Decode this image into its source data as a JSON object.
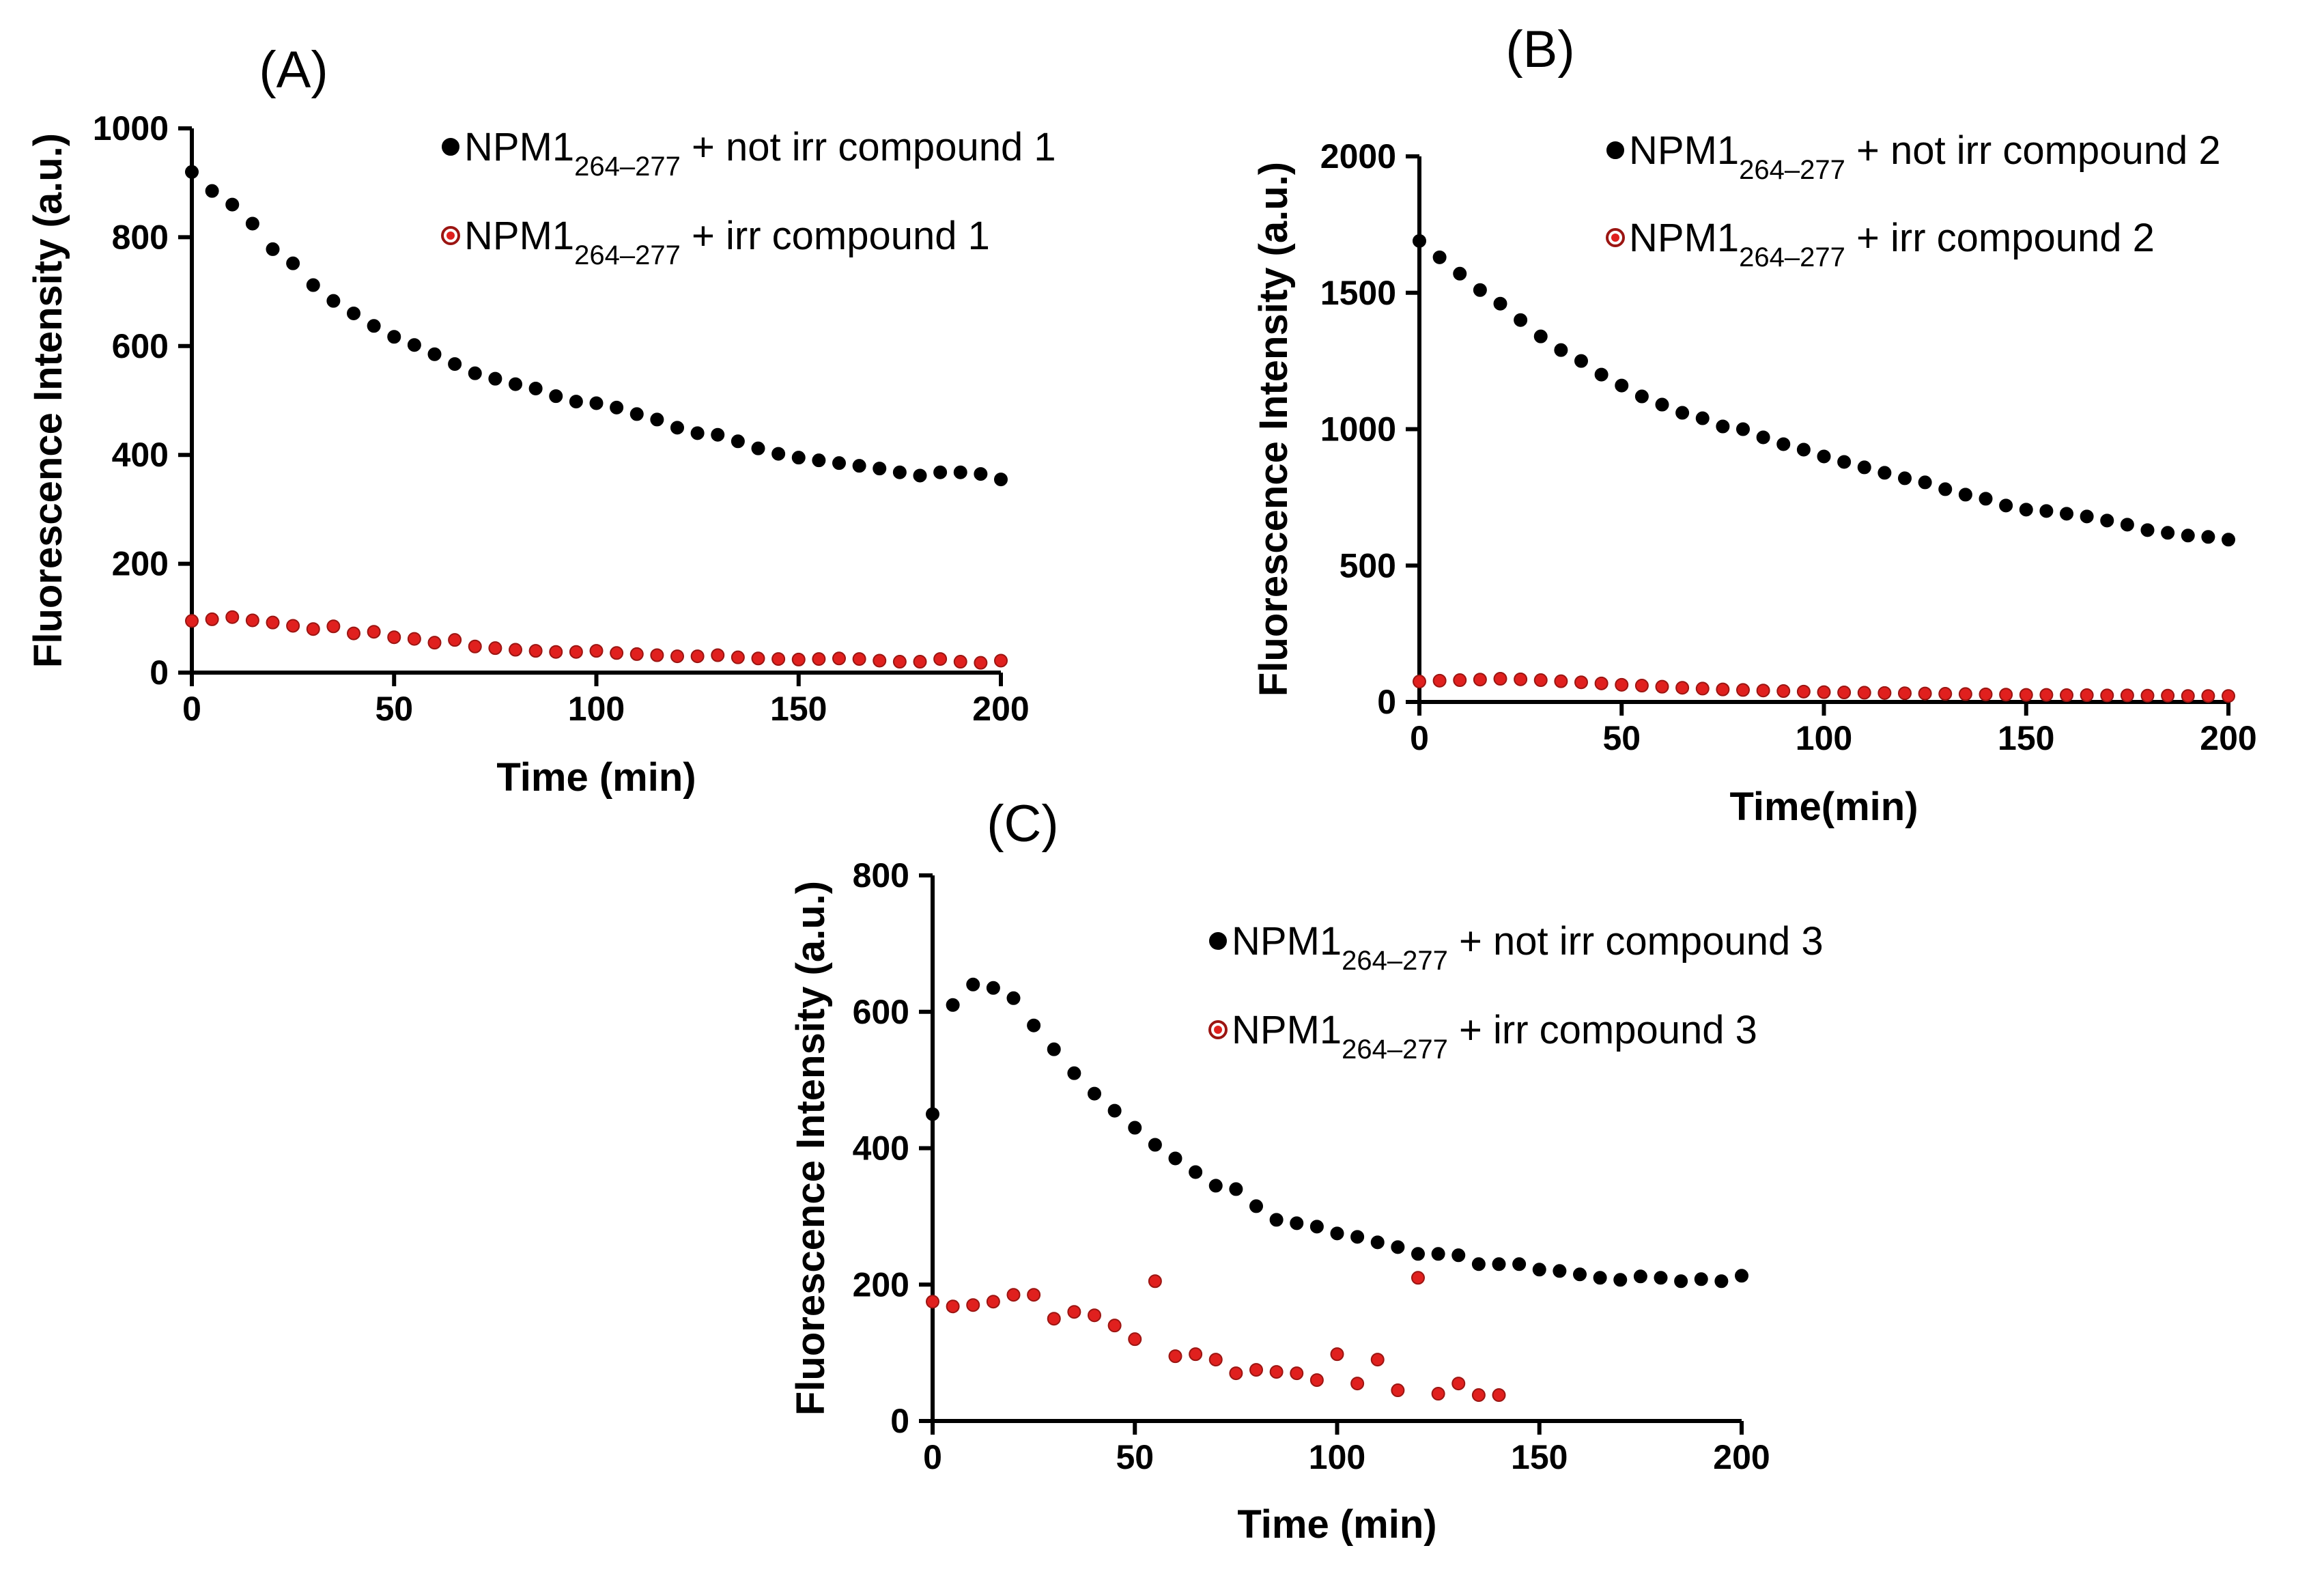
{
  "colors": {
    "not_irradiated": "#000000",
    "irradiated": "#e0201e",
    "irradiated_marker_edge": "#9b1512"
  },
  "chart_data": [
    {
      "type": "scatter",
      "panel": "(A)",
      "xlabel": "Time (min)",
      "ylabel": "Fluorescence Intensity (a.u.)",
      "xlim": [
        0,
        200
      ],
      "ylim": [
        0,
        1000
      ],
      "xticks": [
        0,
        50,
        100,
        150,
        200
      ],
      "yticks": [
        0,
        200,
        400,
        600,
        800,
        1000
      ],
      "legend_position": "top-right",
      "series": [
        {
          "key": "not_irr",
          "legend": {
            "prefix": "NPM1",
            "sub": "264–277",
            "suffix": " + not irr compound 1"
          },
          "x": [
            0,
            5,
            10,
            15,
            20,
            25,
            30,
            35,
            40,
            45,
            50,
            55,
            60,
            65,
            70,
            75,
            80,
            85,
            90,
            95,
            100,
            105,
            110,
            115,
            120,
            125,
            130,
            135,
            140,
            145,
            150,
            155,
            160,
            165,
            170,
            175,
            180,
            185,
            190,
            195,
            200
          ],
          "y": [
            920,
            885,
            860,
            825,
            778,
            752,
            712,
            683,
            660,
            637,
            617,
            602,
            585,
            567,
            550,
            540,
            530,
            522,
            508,
            498,
            495,
            487,
            475,
            465,
            450,
            440,
            437,
            425,
            412,
            402,
            395,
            390,
            385,
            380,
            375,
            368,
            362,
            368,
            368,
            365,
            355
          ]
        },
        {
          "key": "irr",
          "legend": {
            "prefix": "NPM1",
            "sub": "264–277",
            "suffix": " + irr compound 1"
          },
          "x": [
            0,
            5,
            10,
            15,
            20,
            25,
            30,
            35,
            40,
            45,
            50,
            55,
            60,
            65,
            70,
            75,
            80,
            85,
            90,
            95,
            100,
            105,
            110,
            115,
            120,
            125,
            130,
            135,
            140,
            145,
            150,
            155,
            160,
            165,
            170,
            175,
            180,
            185,
            190,
            195,
            200
          ],
          "y": [
            95,
            98,
            102,
            96,
            92,
            86,
            80,
            85,
            72,
            75,
            65,
            62,
            55,
            60,
            48,
            45,
            42,
            40,
            38,
            38,
            40,
            36,
            34,
            32,
            30,
            30,
            32,
            28,
            26,
            25,
            24,
            25,
            26,
            25,
            22,
            20,
            20,
            25,
            20,
            18,
            22
          ]
        }
      ]
    },
    {
      "type": "scatter",
      "panel": "(B)",
      "xlabel": "Time(min)",
      "ylabel": "Fluorescence Intensity (a.u.)",
      "xlim": [
        0,
        200
      ],
      "ylim": [
        0,
        2000
      ],
      "xticks": [
        0,
        50,
        100,
        150,
        200
      ],
      "yticks": [
        0,
        500,
        1000,
        1500,
        2000
      ],
      "legend_position": "top-right",
      "series": [
        {
          "key": "not_irr",
          "legend": {
            "prefix": "NPM1",
            "sub": "264–277",
            "suffix": " + not irr compound 2"
          },
          "x": [
            0,
            5,
            10,
            15,
            20,
            25,
            30,
            35,
            40,
            45,
            50,
            55,
            60,
            65,
            70,
            75,
            80,
            85,
            90,
            95,
            100,
            105,
            110,
            115,
            120,
            125,
            130,
            135,
            140,
            145,
            150,
            155,
            160,
            165,
            170,
            175,
            180,
            185,
            190,
            195,
            200
          ],
          "y": [
            1690,
            1630,
            1570,
            1510,
            1460,
            1400,
            1340,
            1290,
            1250,
            1200,
            1160,
            1120,
            1090,
            1060,
            1040,
            1010,
            1000,
            970,
            945,
            925,
            900,
            880,
            860,
            840,
            820,
            805,
            780,
            760,
            745,
            720,
            705,
            700,
            690,
            680,
            665,
            650,
            630,
            620,
            610,
            605,
            595
          ]
        },
        {
          "key": "irr",
          "legend": {
            "prefix": "NPM1",
            "sub": "264–277",
            "suffix": " + irr compound 2"
          },
          "x": [
            0,
            5,
            10,
            15,
            20,
            25,
            30,
            35,
            40,
            45,
            50,
            55,
            60,
            65,
            70,
            75,
            80,
            85,
            90,
            95,
            100,
            105,
            110,
            115,
            120,
            125,
            130,
            135,
            140,
            145,
            150,
            155,
            160,
            165,
            170,
            175,
            180,
            185,
            190,
            195,
            200
          ],
          "y": [
            75,
            78,
            80,
            82,
            85,
            83,
            80,
            76,
            72,
            68,
            63,
            60,
            56,
            52,
            49,
            46,
            44,
            42,
            40,
            38,
            36,
            35,
            34,
            33,
            32,
            31,
            30,
            29,
            28,
            27,
            26,
            26,
            25,
            25,
            24,
            24,
            23,
            23,
            22,
            22,
            22
          ]
        }
      ]
    },
    {
      "type": "scatter",
      "panel": "(C)",
      "xlabel": "Time (min)",
      "ylabel": "Fluorescence Intensity (a.u.)",
      "xlim": [
        0,
        200
      ],
      "ylim": [
        0,
        800
      ],
      "xticks": [
        0,
        50,
        100,
        150,
        200
      ],
      "yticks": [
        0,
        200,
        400,
        600,
        800
      ],
      "legend_position": "top-right",
      "series": [
        {
          "key": "not_irr",
          "legend": {
            "prefix": "NPM1",
            "sub": "264–277",
            "suffix": " + not irr compound 3"
          },
          "x": [
            0,
            5,
            10,
            15,
            20,
            25,
            30,
            35,
            40,
            45,
            50,
            55,
            60,
            65,
            70,
            75,
            80,
            85,
            90,
            95,
            100,
            105,
            110,
            115,
            120,
            125,
            130,
            135,
            140,
            145,
            150,
            155,
            160,
            165,
            170,
            175,
            180,
            185,
            190,
            195,
            200
          ],
          "y": [
            450,
            610,
            640,
            635,
            620,
            580,
            545,
            510,
            480,
            455,
            430,
            405,
            385,
            365,
            345,
            340,
            315,
            295,
            290,
            285,
            275,
            270,
            262,
            255,
            245,
            245,
            243,
            230,
            230,
            230,
            222,
            220,
            215,
            210,
            207,
            212,
            210,
            205,
            208,
            205,
            213
          ]
        },
        {
          "key": "irr",
          "legend": {
            "prefix": "NPM1",
            "sub": "264–277",
            "suffix": " + irr compound 3"
          },
          "x": [
            0,
            5,
            10,
            15,
            20,
            25,
            30,
            35,
            40,
            45,
            50,
            55,
            60,
            65,
            70,
            75,
            80,
            85,
            90,
            95,
            100,
            105,
            110,
            115,
            120,
            125,
            130,
            135,
            140
          ],
          "y": [
            175,
            168,
            170,
            175,
            185,
            185,
            150,
            160,
            155,
            140,
            120,
            205,
            95,
            98,
            90,
            70,
            75,
            72,
            70,
            60,
            98,
            55,
            90,
            45,
            210,
            40,
            55,
            38,
            38
          ]
        }
      ]
    }
  ]
}
